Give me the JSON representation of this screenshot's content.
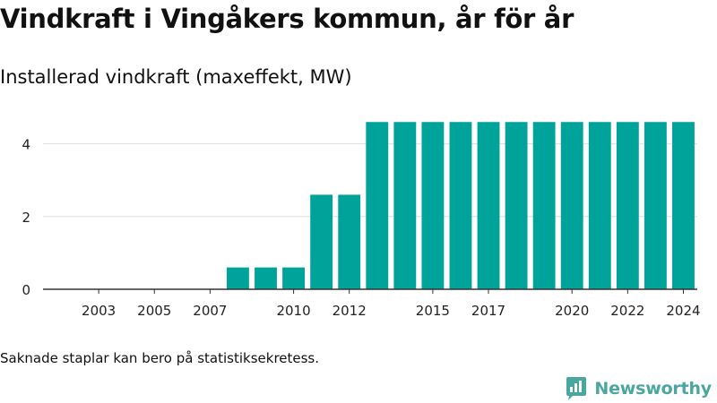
{
  "colors": {
    "bar": "#00a39a",
    "grid": "#dddddd",
    "axis": "#333333",
    "brand": "#4aa7a0"
  },
  "chart_data": {
    "type": "bar",
    "title": "Vindkraft i Vingåkers kommun, år för år",
    "subtitle": "Installerad vindkraft (maxeffekt, MW)",
    "x": [
      2002,
      2003,
      2004,
      2005,
      2006,
      2007,
      2008,
      2009,
      2010,
      2011,
      2012,
      2013,
      2014,
      2015,
      2016,
      2017,
      2018,
      2019,
      2020,
      2021,
      2022,
      2023,
      2024
    ],
    "values": [
      0,
      0,
      0,
      0,
      0,
      0,
      0.6,
      0.6,
      0.6,
      2.6,
      2.6,
      4.6,
      4.6,
      4.6,
      4.6,
      4.6,
      4.6,
      4.6,
      4.6,
      4.6,
      4.6,
      4.6,
      4.6
    ],
    "x_tick_labels": [
      "2003",
      "2005",
      "2007",
      "2010",
      "2012",
      "2015",
      "2017",
      "2020",
      "2022",
      "2024"
    ],
    "y_ticks": [
      0,
      2,
      4
    ],
    "ylim": [
      0,
      5
    ],
    "xlabel": "",
    "ylabel": "",
    "grid": true,
    "legend": false
  },
  "footnote": "Saknade staplar kan bero på statistiksekretess.",
  "brand": {
    "name": "Newsworthy",
    "icon": "newsworthy-logo-icon"
  }
}
